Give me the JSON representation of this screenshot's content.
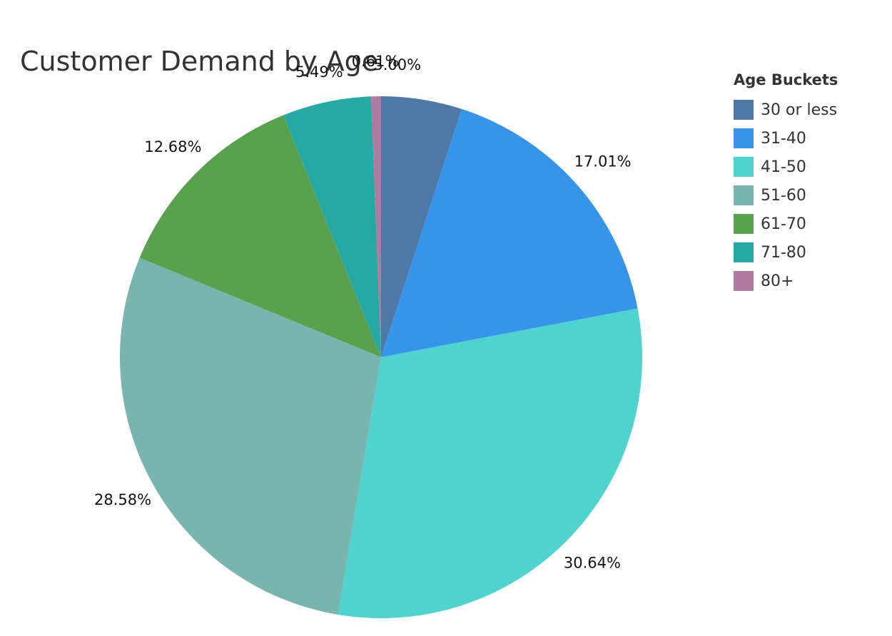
{
  "chart_data": {
    "type": "pie",
    "title": "Customer Demand by Age",
    "legend_title": "Age Buckets",
    "legend_position": "right",
    "slices": [
      {
        "label": "30 or less",
        "value": 5.0,
        "display": "5.00%",
        "color": "#4e79a7"
      },
      {
        "label": "31-40",
        "value": 17.01,
        "display": "17.01%",
        "color": "#3795e9"
      },
      {
        "label": "41-50",
        "value": 30.64,
        "display": "30.64%",
        "color": "#4fd3ce"
      },
      {
        "label": "51-60",
        "value": 28.58,
        "display": "28.58%",
        "color": "#79b4af"
      },
      {
        "label": "61-70",
        "value": 12.68,
        "display": "12.68%",
        "color": "#59a14f"
      },
      {
        "label": "71-80",
        "value": 5.49,
        "display": "5.49%",
        "color": "#24a9a5"
      },
      {
        "label": "80+",
        "value": 0.61,
        "display": "0.61%",
        "color": "#b07aa1"
      }
    ]
  }
}
